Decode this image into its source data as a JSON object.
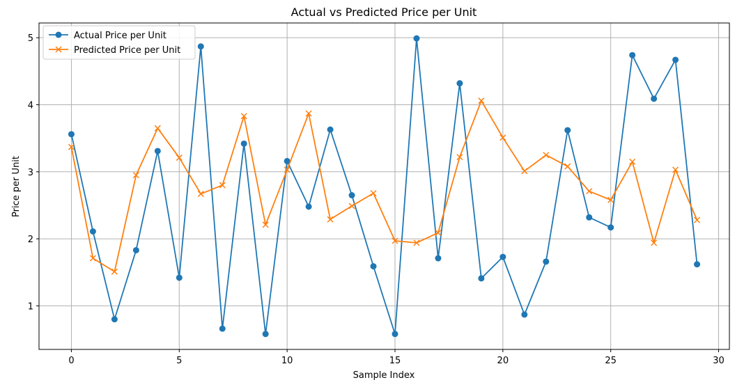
{
  "chart_data": {
    "type": "line",
    "title": "Actual vs Predicted Price per Unit",
    "xlabel": "Sample Index",
    "ylabel": "Price per Unit",
    "xlim": [
      -1.5,
      30.5
    ],
    "ylim": [
      0.35,
      5.22
    ],
    "xticks": [
      0,
      5,
      10,
      15,
      20,
      25,
      30
    ],
    "yticks": [
      1,
      2,
      3,
      4,
      5
    ],
    "grid": true,
    "legend_position": "top-left",
    "x": [
      0,
      1,
      2,
      3,
      4,
      5,
      6,
      7,
      8,
      9,
      10,
      11,
      12,
      13,
      14,
      15,
      16,
      17,
      18,
      19,
      20,
      21,
      22,
      23,
      24,
      25,
      26,
      27,
      28,
      29
    ],
    "series": [
      {
        "name": "Actual Price per Unit",
        "color": "#1f77b4",
        "marker": "circle",
        "values": [
          3.56,
          2.11,
          0.8,
          1.83,
          3.31,
          1.42,
          4.87,
          0.66,
          3.42,
          0.58,
          3.16,
          2.48,
          3.63,
          2.65,
          1.59,
          0.58,
          4.99,
          1.71,
          4.32,
          1.41,
          1.73,
          0.87,
          1.66,
          3.62,
          2.32,
          2.17,
          4.74,
          4.09,
          4.67,
          1.62
        ]
      },
      {
        "name": "Predicted Price per Unit",
        "color": "#ff7f0e",
        "marker": "x",
        "values": [
          3.37,
          1.71,
          1.51,
          2.95,
          3.65,
          3.21,
          2.67,
          2.8,
          3.83,
          2.21,
          3.03,
          3.87,
          2.29,
          2.49,
          2.68,
          1.97,
          1.94,
          2.09,
          3.22,
          4.06,
          3.51,
          3.01,
          3.25,
          3.08,
          2.71,
          2.58,
          3.15,
          1.94,
          3.03,
          2.28
        ]
      }
    ]
  }
}
